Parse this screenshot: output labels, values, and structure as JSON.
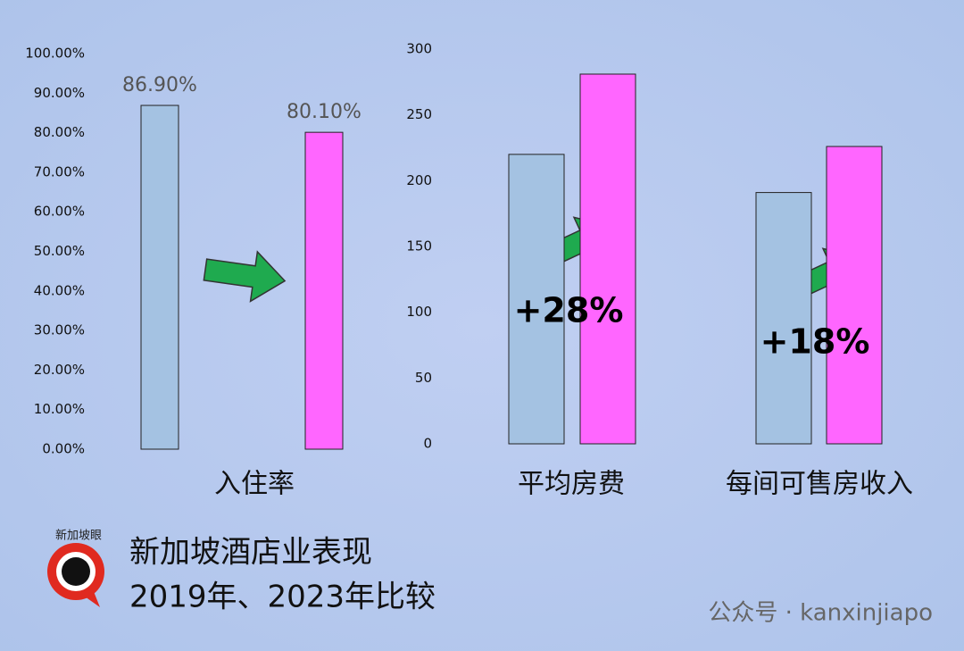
{
  "chart_data": [
    {
      "type": "bar",
      "categories": [
        "入住率"
      ],
      "series": [
        {
          "color": "#a4c2e2",
          "values": [
            86.9
          ],
          "value_labels": [
            "86.90%"
          ]
        },
        {
          "color": "#ff66ff",
          "values": [
            80.1
          ],
          "value_labels": [
            "80.10%"
          ]
        }
      ],
      "ylim": [
        0,
        100
      ],
      "yticks": [
        {
          "value": 0,
          "label": "0.00%"
        },
        {
          "value": 10,
          "label": "10.00%"
        },
        {
          "value": 20,
          "label": "20.00%"
        },
        {
          "value": 30,
          "label": "30.00%"
        },
        {
          "value": 40,
          "label": "40.00%"
        },
        {
          "value": 50,
          "label": "50.00%"
        },
        {
          "value": 60,
          "label": "60.00%"
        },
        {
          "value": 70,
          "label": "70.00%"
        },
        {
          "value": 80,
          "label": "80.00%"
        },
        {
          "value": 90,
          "label": "90.00%"
        },
        {
          "value": 100,
          "label": "100.00%"
        }
      ]
    },
    {
      "type": "bar",
      "categories": [
        "平均房费",
        "每间可售房收入"
      ],
      "series": [
        {
          "color": "#a4c2e2",
          "values": [
            220,
            191
          ]
        },
        {
          "color": "#ff66ff",
          "values": [
            281,
            226
          ]
        }
      ],
      "ylim": [
        0,
        300
      ],
      "yticks": [
        0,
        50,
        100,
        150,
        200,
        250,
        300
      ],
      "annotations": [
        "+28%",
        "+18%"
      ]
    }
  ],
  "header": {
    "title": "新加坡酒店业表现",
    "subtitle": "2019年、2023年比较"
  },
  "logo": "新加坡眼",
  "watermark": "公众号 · kanxinjiapo"
}
